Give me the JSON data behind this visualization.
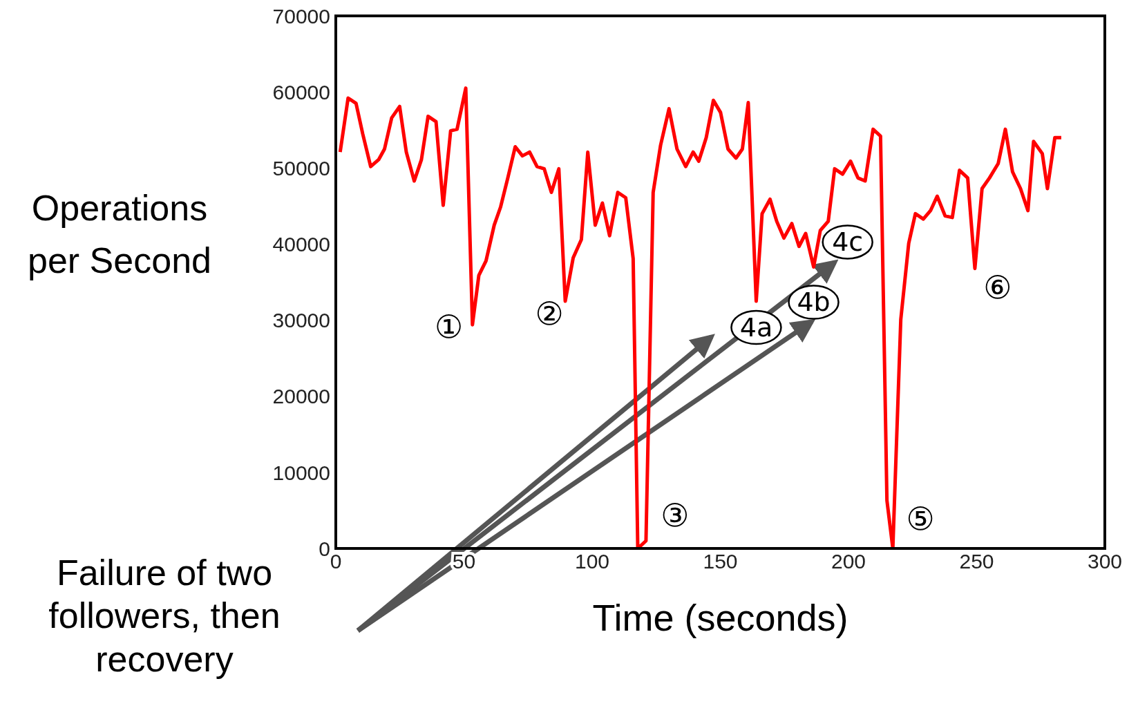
{
  "chart_data": {
    "type": "line",
    "xlabel": "Time (seconds)",
    "ylabel": "Operations per Second",
    "xlim": [
      0,
      300
    ],
    "xticks": [
      0,
      50,
      100,
      150,
      200,
      250,
      300
    ],
    "ylim": [
      0,
      70000
    ],
    "yticks": [
      0,
      10000,
      20000,
      30000,
      40000,
      50000,
      60000,
      70000
    ],
    "x": [
      1.7,
      4.8,
      7.9,
      10.5,
      13.6,
      16.7,
      19,
      21.8,
      24.9,
      27.5,
      30.6,
      33.4,
      36,
      39.1,
      41.9,
      44.8,
      47.3,
      50.7,
      53.3,
      55.8,
      58.6,
      61.8,
      64.3,
      67.1,
      70,
      72.8,
      75.6,
      78.5,
      81.3,
      84.1,
      87,
      89.5,
      92.6,
      95.8,
      98.3,
      101.2,
      104,
      106.8,
      110,
      113.1,
      116,
      117.8,
      121,
      123.8,
      126.7,
      130,
      133.1,
      136.5,
      139.4,
      141.6,
      144.5,
      147.3,
      150.1,
      153,
      156.1,
      158.6,
      160.9,
      164,
      166.3,
      169.4,
      172,
      174.8,
      177.9,
      180.7,
      183.3,
      186.4,
      189,
      192.1,
      194.6,
      197.7,
      200.8,
      203.7,
      206.5,
      209.6,
      212.5,
      215,
      217.3,
      220.4,
      223.5,
      226.1,
      229.2,
      232,
      234.6,
      237.7,
      240.5,
      243.3,
      246.5,
      249.3,
      252.1,
      255,
      258.4,
      261.2,
      264,
      267.1,
      270,
      272.2,
      275.6,
      277.6,
      280.5,
      283
    ],
    "series": [
      {
        "color": "#ff0000",
        "values": [
          52100,
          59200,
          58500,
          54500,
          50200,
          51100,
          52500,
          56600,
          58100,
          52100,
          48300,
          51100,
          56800,
          56100,
          45100,
          54900,
          55100,
          60500,
          29400,
          35900,
          37800,
          42500,
          44900,
          48700,
          52800,
          51600,
          52100,
          50200,
          49900,
          46800,
          49900,
          32500,
          38200,
          40600,
          52100,
          42500,
          45400,
          41100,
          46800,
          46100,
          38100,
          0,
          1000,
          46800,
          53000,
          57800,
          52500,
          50200,
          52100,
          50900,
          54000,
          58900,
          57300,
          52500,
          51300,
          52500,
          58600,
          32500,
          44000,
          45900,
          43000,
          40800,
          42700,
          39700,
          41400,
          37000,
          41800,
          43000,
          49900,
          49200,
          50900,
          48700,
          48300,
          55100,
          54200,
          6300,
          0,
          30100,
          40100,
          44000,
          43300,
          44400,
          46300,
          43700,
          43500,
          49700,
          48700,
          36800,
          47300,
          48700,
          50600,
          55100,
          49500,
          47300,
          44400,
          53500,
          51900,
          47300,
          54000,
          54000
        ]
      }
    ],
    "annotations": [
      {
        "text": "①",
        "x": 53.3,
        "y": 29400
      },
      {
        "text": "②",
        "x": 89.5,
        "y": 32500
      },
      {
        "text": "③",
        "x": 121,
        "y": 1000
      },
      {
        "text": "4a",
        "x": 164,
        "y": 32500
      },
      {
        "text": "4b",
        "x": 186.4,
        "y": 37000
      },
      {
        "text": "4c",
        "x": 192.1,
        "y": 43000
      },
      {
        "text": "⑤",
        "x": 217.3,
        "y": 0
      },
      {
        "text": "⑥",
        "x": 249.3,
        "y": 36800
      },
      "Failure of two followers, then recovery"
    ]
  }
}
